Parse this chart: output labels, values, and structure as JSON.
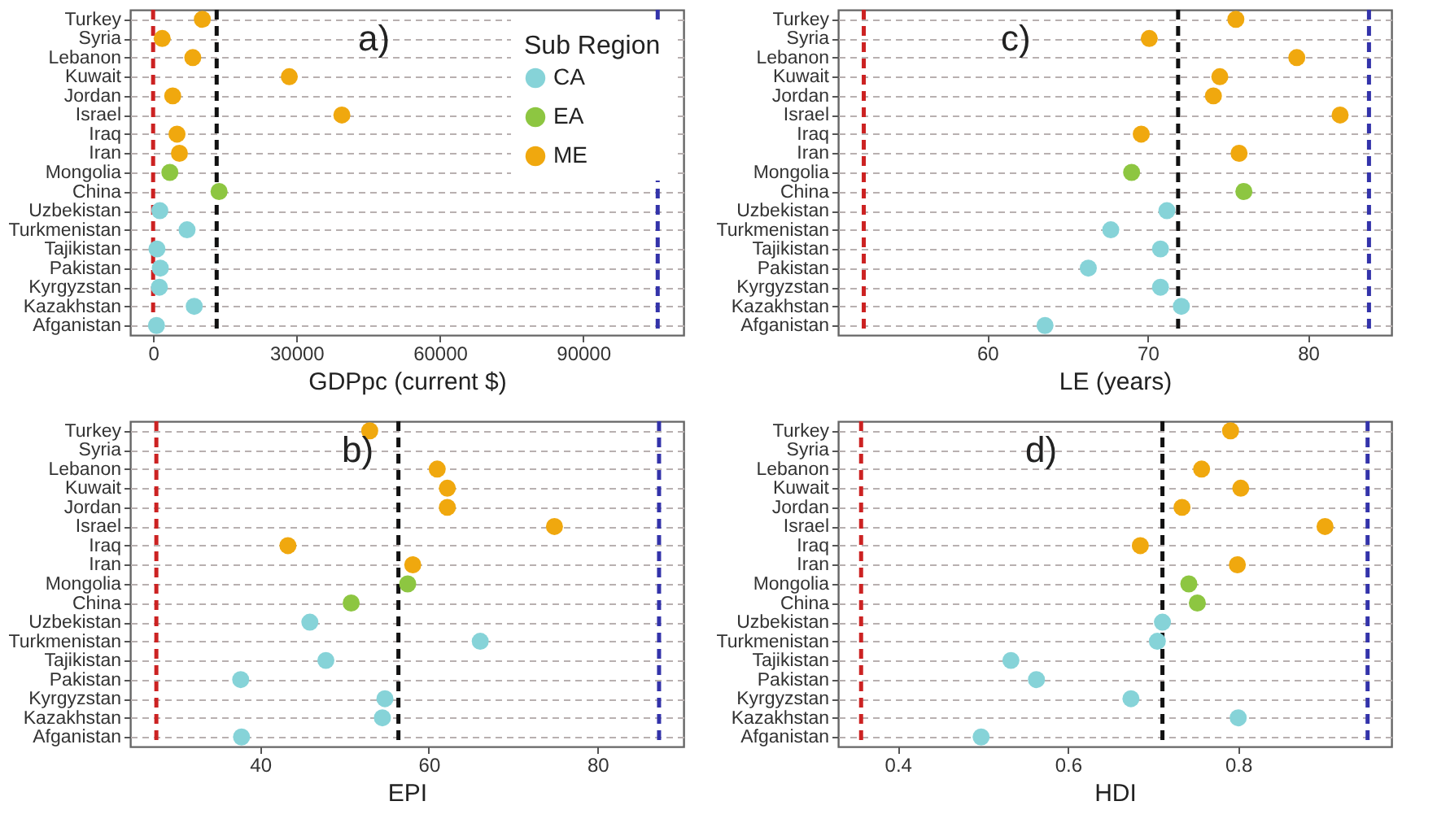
{
  "chart_data": [
    {
      "type": "scatter",
      "orientation": "horizontal",
      "xlabel": "GDPpc (current $)",
      "legend_title": "Sub Region",
      "legend": "top right",
      "grid": "y",
      "marker": "circle",
      "annotations": [
        "a)"
      ],
      "categories": [
        "Turkey",
        "Syria",
        "Lebanon",
        "Kuwait",
        "Jordan",
        "Israel",
        "Iraq",
        "Iran",
        "Mongolia",
        "China",
        "Uzbekistan",
        "Turkmenistan",
        "Tajikistan",
        "Pakistan",
        "Kyrgyzstan",
        "Kazakhstan",
        "Afganistan"
      ],
      "xlim": [
        -4800,
        111000
      ],
      "xticks": [
        0,
        30000,
        60000,
        90000
      ],
      "ref_lines": [
        {
          "axis": "x",
          "value": 0,
          "color": "#cc2222",
          "line_style": "dashed"
        },
        {
          "axis": "x",
          "value": 13300,
          "color": "#111111",
          "line_style": "dashed"
        },
        {
          "axis": "x",
          "value": 105600,
          "color": "#3333aa",
          "line_style": "dashed"
        }
      ],
      "series": [
        {
          "name": "CA",
          "color": "#86d3d8",
          "values": [
            null,
            null,
            null,
            null,
            null,
            null,
            null,
            null,
            null,
            null,
            1400,
            7100,
            800,
            1500,
            1300,
            8600,
            700
          ]
        },
        {
          "name": "EA",
          "color": "#8dc641",
          "values": [
            null,
            null,
            null,
            null,
            null,
            null,
            null,
            null,
            3500,
            13800,
            null,
            null,
            null,
            null,
            null,
            null,
            null
          ]
        },
        {
          "name": "ME",
          "color": "#f0a80e",
          "values": [
            10300,
            1900,
            8300,
            28500,
            4100,
            39500,
            5000,
            5500,
            null,
            null,
            null,
            null,
            null,
            null,
            null,
            null,
            null
          ]
        }
      ]
    },
    {
      "type": "scatter",
      "orientation": "horizontal",
      "xlabel": "LE (years)",
      "grid": "y",
      "marker": "circle",
      "annotations": [
        "c)"
      ],
      "categories": [
        "Turkey",
        "Syria",
        "Lebanon",
        "Kuwait",
        "Jordan",
        "Israel",
        "Iraq",
        "Iran",
        "Mongolia",
        "China",
        "Uzbekistan",
        "Turkmenistan",
        "Tajikistan",
        "Pakistan",
        "Kyrgyzstan",
        "Kazakhstan",
        "Afganistan"
      ],
      "xlim": [
        50.7,
        85.2
      ],
      "xticks": [
        60,
        70,
        80
      ],
      "ref_lines": [
        {
          "axis": "x",
          "value": 52.3,
          "color": "#cc2222",
          "line_style": "dashed"
        },
        {
          "axis": "x",
          "value": 71.9,
          "color": "#111111",
          "line_style": "dashed"
        },
        {
          "axis": "x",
          "value": 83.8,
          "color": "#3333aa",
          "line_style": "dashed"
        }
      ],
      "series": [
        {
          "color": "#86d3d8",
          "values": [
            null,
            null,
            null,
            null,
            null,
            null,
            null,
            null,
            null,
            null,
            71.2,
            67.7,
            70.8,
            66.3,
            70.8,
            72.1,
            63.6
          ]
        },
        {
          "color": "#8dc641",
          "values": [
            null,
            null,
            null,
            null,
            null,
            null,
            null,
            null,
            69.0,
            76.0,
            null,
            null,
            null,
            null,
            null,
            null,
            null
          ]
        },
        {
          "color": "#f0a80e",
          "values": [
            75.5,
            70.1,
            79.3,
            74.5,
            74.1,
            82.0,
            69.6,
            75.7,
            null,
            null,
            null,
            null,
            null,
            null,
            null,
            null,
            null
          ]
        }
      ]
    },
    {
      "type": "scatter",
      "orientation": "horizontal",
      "xlabel": "EPI",
      "grid": "y",
      "marker": "circle",
      "annotations": [
        "b)"
      ],
      "categories": [
        "Turkey",
        "Syria",
        "Lebanon",
        "Kuwait",
        "Jordan",
        "Israel",
        "Iraq",
        "Iran",
        "Mongolia",
        "China",
        "Uzbekistan",
        "Turkmenistan",
        "Tajikistan",
        "Pakistan",
        "Kyrgyzstan",
        "Kazakhstan",
        "Afganistan"
      ],
      "xlim": [
        24.6,
        90.2
      ],
      "xticks": [
        40,
        60,
        80
      ],
      "ref_lines": [
        {
          "axis": "x",
          "value": 27.7,
          "color": "#cc2222",
          "line_style": "dashed"
        },
        {
          "axis": "x",
          "value": 56.4,
          "color": "#111111",
          "line_style": "dashed"
        },
        {
          "axis": "x",
          "value": 87.3,
          "color": "#3333aa",
          "line_style": "dashed"
        }
      ],
      "series": [
        {
          "color": "#86d3d8",
          "values": [
            null,
            null,
            null,
            null,
            null,
            null,
            null,
            null,
            null,
            null,
            45.9,
            66.1,
            47.8,
            37.7,
            54.8,
            54.5,
            37.8
          ]
        },
        {
          "color": "#8dc641",
          "values": [
            null,
            null,
            null,
            null,
            null,
            null,
            null,
            null,
            57.5,
            50.8,
            null,
            null,
            null,
            null,
            null,
            null,
            null
          ]
        },
        {
          "color": "#f0a80e",
          "values": [
            53.0,
            null,
            61.0,
            62.2,
            62.2,
            74.9,
            43.3,
            58.1,
            null,
            null,
            null,
            null,
            null,
            null,
            null,
            null,
            null
          ]
        }
      ]
    },
    {
      "type": "scatter",
      "orientation": "horizontal",
      "xlabel": "HDI",
      "grid": "y",
      "marker": "circle",
      "annotations": [
        "d)"
      ],
      "categories": [
        "Turkey",
        "Syria",
        "Lebanon",
        "Kuwait",
        "Jordan",
        "Israel",
        "Iraq",
        "Iran",
        "Mongolia",
        "China",
        "Uzbekistan",
        "Turkmenistan",
        "Tajikistan",
        "Pakistan",
        "Kyrgyzstan",
        "Kazakhstan",
        "Afganistan"
      ],
      "xlim": [
        0.33,
        0.98
      ],
      "xticks": [
        0.4,
        0.6,
        0.8
      ],
      "ref_lines": [
        {
          "axis": "x",
          "value": 0.357,
          "color": "#cc2222",
          "line_style": "dashed"
        },
        {
          "axis": "x",
          "value": 0.711,
          "color": "#111111",
          "line_style": "dashed"
        },
        {
          "axis": "x",
          "value": 0.952,
          "color": "#3333aa",
          "line_style": "dashed"
        }
      ],
      "series": [
        {
          "color": "#86d3d8",
          "values": [
            null,
            null,
            null,
            null,
            null,
            null,
            null,
            null,
            null,
            null,
            0.711,
            0.705,
            0.533,
            0.563,
            0.674,
            0.8,
            0.498
          ]
        },
        {
          "color": "#8dc641",
          "values": [
            null,
            null,
            null,
            null,
            null,
            null,
            null,
            null,
            0.742,
            0.752,
            null,
            null,
            null,
            null,
            null,
            null,
            null
          ]
        },
        {
          "color": "#f0a80e",
          "values": [
            0.791,
            null,
            0.757,
            0.803,
            0.734,
            0.902,
            0.685,
            0.799,
            null,
            null,
            null,
            null,
            null,
            null,
            null,
            null,
            null
          ]
        }
      ]
    }
  ]
}
